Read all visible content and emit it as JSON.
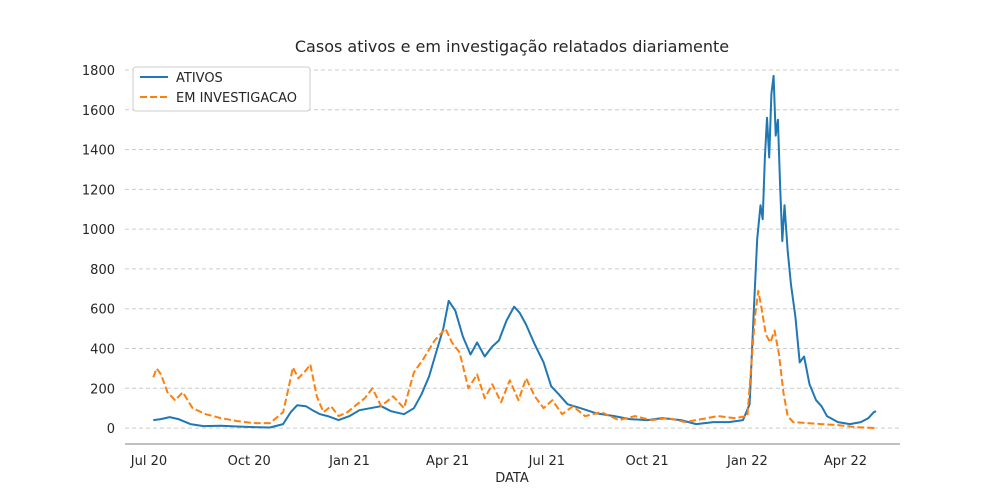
{
  "chart_data": {
    "type": "line",
    "title": "Casos ativos e em investigação relatados diariamente",
    "xlabel": "DATA",
    "ylabel": "",
    "xlim": [
      "2020-06-09",
      "2022-05-21"
    ],
    "ylim": [
      -80,
      1840
    ],
    "x_ticks": [
      {
        "date": "2020-07-01",
        "label": "Jul 20"
      },
      {
        "date": "2020-10-01",
        "label": "Oct 20"
      },
      {
        "date": "2021-01-01",
        "label": "Jan 21"
      },
      {
        "date": "2021-04-01",
        "label": "Apr 21"
      },
      {
        "date": "2021-07-01",
        "label": "Jul 21"
      },
      {
        "date": "2021-10-01",
        "label": "Oct 21"
      },
      {
        "date": "2022-01-01",
        "label": "Jan 22"
      },
      {
        "date": "2022-04-01",
        "label": "Apr 22"
      }
    ],
    "y_ticks": [
      0,
      200,
      400,
      600,
      800,
      1000,
      1200,
      1400,
      1600,
      1800
    ],
    "grid": "horizontal dashed",
    "legend_position": "top-left",
    "series": [
      {
        "name": "ATIVOS",
        "color": "#1f77b4",
        "style": "solid",
        "points": [
          [
            "2020-07-05",
            40
          ],
          [
            "2020-07-12",
            45
          ],
          [
            "2020-07-20",
            55
          ],
          [
            "2020-07-28",
            45
          ],
          [
            "2020-08-08",
            20
          ],
          [
            "2020-08-20",
            10
          ],
          [
            "2020-09-05",
            12
          ],
          [
            "2020-09-20",
            8
          ],
          [
            "2020-10-05",
            5
          ],
          [
            "2020-10-20",
            3
          ],
          [
            "2020-11-01",
            20
          ],
          [
            "2020-11-08",
            80
          ],
          [
            "2020-11-14",
            115
          ],
          [
            "2020-11-22",
            110
          ],
          [
            "2020-11-28",
            90
          ],
          [
            "2020-12-05",
            70
          ],
          [
            "2020-12-12",
            60
          ],
          [
            "2020-12-22",
            40
          ],
          [
            "2021-01-01",
            60
          ],
          [
            "2021-01-10",
            90
          ],
          [
            "2021-01-20",
            100
          ],
          [
            "2021-01-30",
            110
          ],
          [
            "2021-02-08",
            85
          ],
          [
            "2021-02-20",
            70
          ],
          [
            "2021-03-01",
            100
          ],
          [
            "2021-03-08",
            170
          ],
          [
            "2021-03-15",
            260
          ],
          [
            "2021-03-22",
            390
          ],
          [
            "2021-03-28",
            500
          ],
          [
            "2021-04-02",
            640
          ],
          [
            "2021-04-08",
            590
          ],
          [
            "2021-04-15",
            460
          ],
          [
            "2021-04-22",
            370
          ],
          [
            "2021-04-28",
            430
          ],
          [
            "2021-05-05",
            360
          ],
          [
            "2021-05-12",
            410
          ],
          [
            "2021-05-18",
            440
          ],
          [
            "2021-05-25",
            540
          ],
          [
            "2021-06-01",
            610
          ],
          [
            "2021-06-06",
            580
          ],
          [
            "2021-06-12",
            520
          ],
          [
            "2021-06-20",
            420
          ],
          [
            "2021-06-28",
            330
          ],
          [
            "2021-07-05",
            210
          ],
          [
            "2021-07-12",
            170
          ],
          [
            "2021-07-20",
            120
          ],
          [
            "2021-08-01",
            100
          ],
          [
            "2021-08-15",
            75
          ],
          [
            "2021-09-01",
            60
          ],
          [
            "2021-09-15",
            45
          ],
          [
            "2021-10-01",
            40
          ],
          [
            "2021-10-15",
            50
          ],
          [
            "2021-11-01",
            40
          ],
          [
            "2021-11-15",
            20
          ],
          [
            "2021-12-01",
            30
          ],
          [
            "2021-12-15",
            30
          ],
          [
            "2021-12-28",
            40
          ],
          [
            "2022-01-03",
            120
          ],
          [
            "2022-01-07",
            600
          ],
          [
            "2022-01-10",
            950
          ],
          [
            "2022-01-13",
            1120
          ],
          [
            "2022-01-15",
            1050
          ],
          [
            "2022-01-17",
            1350
          ],
          [
            "2022-01-19",
            1560
          ],
          [
            "2022-01-21",
            1360
          ],
          [
            "2022-01-23",
            1680
          ],
          [
            "2022-01-25",
            1770
          ],
          [
            "2022-01-27",
            1470
          ],
          [
            "2022-01-29",
            1550
          ],
          [
            "2022-01-31",
            1220
          ],
          [
            "2022-02-02",
            940
          ],
          [
            "2022-02-04",
            1120
          ],
          [
            "2022-02-07",
            890
          ],
          [
            "2022-02-10",
            720
          ],
          [
            "2022-02-14",
            560
          ],
          [
            "2022-02-18",
            330
          ],
          [
            "2022-02-22",
            360
          ],
          [
            "2022-02-27",
            220
          ],
          [
            "2022-03-05",
            140
          ],
          [
            "2022-03-10",
            110
          ],
          [
            "2022-03-15",
            60
          ],
          [
            "2022-03-25",
            30
          ],
          [
            "2022-04-05",
            20
          ],
          [
            "2022-04-15",
            30
          ],
          [
            "2022-04-22",
            50
          ],
          [
            "2022-04-27",
            80
          ],
          [
            "2022-04-29",
            85
          ]
        ]
      },
      {
        "name": "EM INVESTIGACAO",
        "color": "#ff7f0e",
        "style": "dashed",
        "points": [
          [
            "2020-07-05",
            255
          ],
          [
            "2020-07-08",
            300
          ],
          [
            "2020-07-12",
            270
          ],
          [
            "2020-07-18",
            180
          ],
          [
            "2020-07-25",
            140
          ],
          [
            "2020-08-01",
            180
          ],
          [
            "2020-08-10",
            100
          ],
          [
            "2020-08-22",
            70
          ],
          [
            "2020-09-05",
            50
          ],
          [
            "2020-09-20",
            35
          ],
          [
            "2020-10-05",
            25
          ],
          [
            "2020-10-20",
            25
          ],
          [
            "2020-11-01",
            80
          ],
          [
            "2020-11-06",
            200
          ],
          [
            "2020-11-10",
            305
          ],
          [
            "2020-11-15",
            250
          ],
          [
            "2020-11-22",
            290
          ],
          [
            "2020-11-26",
            320
          ],
          [
            "2020-12-02",
            160
          ],
          [
            "2020-12-08",
            80
          ],
          [
            "2020-12-15",
            110
          ],
          [
            "2020-12-22",
            60
          ],
          [
            "2020-12-30",
            80
          ],
          [
            "2021-01-08",
            120
          ],
          [
            "2021-01-15",
            150
          ],
          [
            "2021-01-22",
            200
          ],
          [
            "2021-01-30",
            110
          ],
          [
            "2021-02-10",
            160
          ],
          [
            "2021-02-20",
            100
          ],
          [
            "2021-03-01",
            280
          ],
          [
            "2021-03-10",
            350
          ],
          [
            "2021-03-20",
            440
          ],
          [
            "2021-03-30",
            500
          ],
          [
            "2021-04-05",
            430
          ],
          [
            "2021-04-12",
            380
          ],
          [
            "2021-04-20",
            200
          ],
          [
            "2021-04-28",
            270
          ],
          [
            "2021-05-05",
            150
          ],
          [
            "2021-05-12",
            220
          ],
          [
            "2021-05-20",
            130
          ],
          [
            "2021-05-28",
            240
          ],
          [
            "2021-06-05",
            140
          ],
          [
            "2021-06-12",
            250
          ],
          [
            "2021-06-20",
            160
          ],
          [
            "2021-06-28",
            100
          ],
          [
            "2021-07-06",
            140
          ],
          [
            "2021-07-15",
            70
          ],
          [
            "2021-07-25",
            110
          ],
          [
            "2021-08-05",
            60
          ],
          [
            "2021-08-20",
            80
          ],
          [
            "2021-09-05",
            40
          ],
          [
            "2021-09-20",
            60
          ],
          [
            "2021-10-05",
            40
          ],
          [
            "2021-10-20",
            50
          ],
          [
            "2021-11-05",
            30
          ],
          [
            "2021-11-20",
            45
          ],
          [
            "2021-12-05",
            60
          ],
          [
            "2021-12-20",
            50
          ],
          [
            "2022-01-01",
            60
          ],
          [
            "2022-01-05",
            350
          ],
          [
            "2022-01-08",
            560
          ],
          [
            "2022-01-11",
            690
          ],
          [
            "2022-01-14",
            600
          ],
          [
            "2022-01-18",
            470
          ],
          [
            "2022-01-22",
            430
          ],
          [
            "2022-01-26",
            490
          ],
          [
            "2022-01-30",
            370
          ],
          [
            "2022-02-03",
            180
          ],
          [
            "2022-02-07",
            60
          ],
          [
            "2022-02-12",
            30
          ],
          [
            "2022-02-25",
            25
          ],
          [
            "2022-03-10",
            20
          ],
          [
            "2022-03-25",
            15
          ],
          [
            "2022-04-10",
            5
          ],
          [
            "2022-04-29",
            0
          ]
        ]
      }
    ]
  }
}
